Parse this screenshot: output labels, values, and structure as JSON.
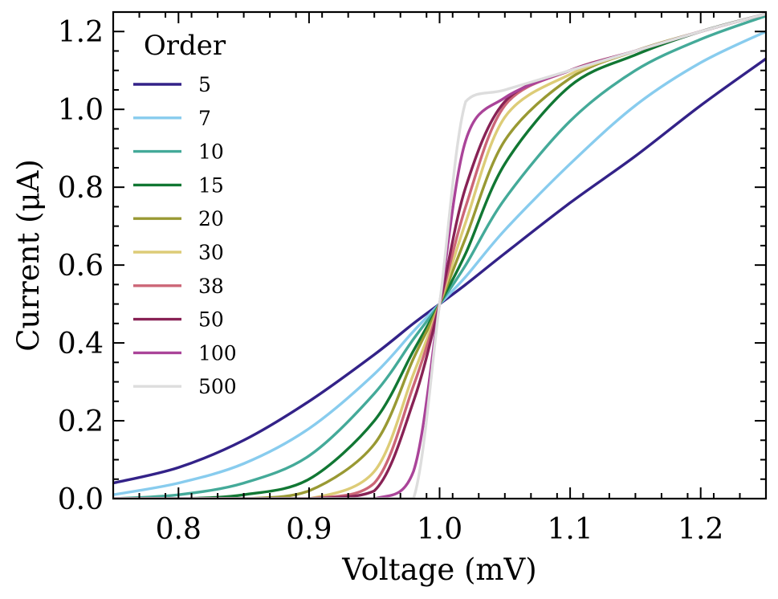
{
  "chart_data": {
    "type": "line",
    "title": "",
    "xlabel": "Voltage (mV)",
    "ylabel": "Current (μA)",
    "xlim": [
      0.75,
      1.25
    ],
    "ylim": [
      0.0,
      1.25
    ],
    "xticks": [
      0.8,
      0.9,
      1.0,
      1.1,
      1.2
    ],
    "xtick_labels": [
      "0.8",
      "0.9",
      "1.0",
      "1.1",
      "1.2"
    ],
    "yticks": [
      0.0,
      0.2,
      0.4,
      0.6,
      0.8,
      1.0,
      1.2
    ],
    "ytick_labels": [
      "0.0",
      "0.2",
      "0.4",
      "0.6",
      "0.8",
      "1.0",
      "1.2"
    ],
    "grid": false,
    "legend": {
      "title": "Order",
      "placement": "top-left"
    },
    "x": [
      0.75,
      0.8,
      0.85,
      0.9,
      0.95,
      0.98,
      1.0,
      1.02,
      1.05,
      1.1,
      1.15,
      1.2,
      1.25
    ],
    "series": [
      {
        "name": "5",
        "color": "#332288",
        "values": [
          0.04,
          0.08,
          0.15,
          0.25,
          0.37,
          0.45,
          0.5,
          0.55,
          0.63,
          0.76,
          0.88,
          1.01,
          1.13
        ]
      },
      {
        "name": "7",
        "color": "#88CCEE",
        "values": [
          0.01,
          0.04,
          0.09,
          0.18,
          0.32,
          0.43,
          0.5,
          0.57,
          0.69,
          0.86,
          1.01,
          1.12,
          1.2
        ]
      },
      {
        "name": "10",
        "color": "#44AA99",
        "values": [
          0.0,
          0.01,
          0.04,
          0.11,
          0.27,
          0.41,
          0.5,
          0.6,
          0.77,
          0.97,
          1.1,
          1.18,
          1.24
        ]
      },
      {
        "name": "15",
        "color": "#117733",
        "values": [
          0.0,
          0.0,
          0.01,
          0.05,
          0.2,
          0.38,
          0.5,
          0.63,
          0.86,
          1.06,
          1.14,
          1.2,
          1.245
        ]
      },
      {
        "name": "20",
        "color": "#999933",
        "values": [
          0.0,
          0.0,
          0.0,
          0.02,
          0.14,
          0.36,
          0.5,
          0.67,
          0.92,
          1.08,
          1.15,
          1.2,
          1.245
        ]
      },
      {
        "name": "30",
        "color": "#DDCC77",
        "values": [
          0.0,
          0.0,
          0.0,
          0.0,
          0.07,
          0.32,
          0.5,
          0.71,
          0.98,
          1.09,
          1.15,
          1.2,
          1.245
        ]
      },
      {
        "name": "38",
        "color": "#CC6677",
        "values": [
          0.0,
          0.0,
          0.0,
          0.0,
          0.04,
          0.29,
          0.5,
          0.75,
          1.01,
          1.1,
          1.15,
          1.2,
          1.245
        ]
      },
      {
        "name": "50",
        "color": "#882255",
        "values": [
          0.0,
          0.0,
          0.0,
          0.0,
          0.02,
          0.25,
          0.5,
          0.8,
          1.02,
          1.1,
          1.15,
          1.2,
          1.245
        ]
      },
      {
        "name": "100",
        "color": "#AA4499",
        "values": [
          0.0,
          0.0,
          0.0,
          0.0,
          0.0,
          0.07,
          0.5,
          0.92,
          1.03,
          1.1,
          1.15,
          1.2,
          1.245
        ]
      },
      {
        "name": "500",
        "color": "#DDDDDD",
        "values": [
          0.0,
          0.0,
          0.0,
          0.0,
          0.0,
          0.0,
          0.5,
          1.02,
          1.05,
          1.1,
          1.15,
          1.2,
          1.245
        ]
      }
    ]
  }
}
